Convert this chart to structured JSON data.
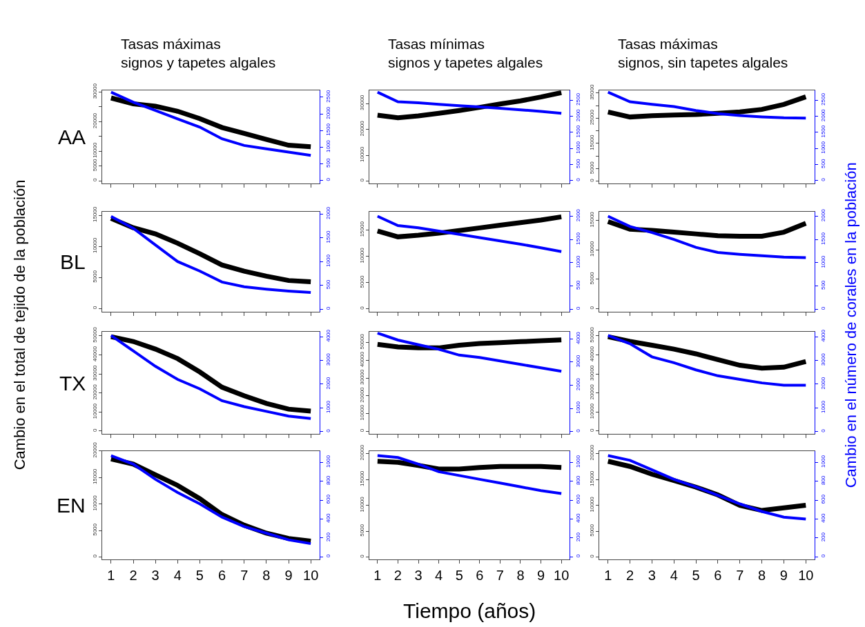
{
  "chart_data": [
    {
      "type": "line",
      "title": "Tasas máximas\nsignos y tapetes algales",
      "ylabel": "Cambio en el total de tejido de la población",
      "annotations": [
        "AA"
      ],
      "x": [
        1,
        2,
        3,
        4,
        5,
        6,
        7,
        8,
        9,
        10
      ],
      "xlim": [
        0.6,
        10.4
      ],
      "xticks": [
        1,
        2,
        3,
        4,
        5,
        6,
        7,
        8,
        9,
        10
      ],
      "tick_labels": "y",
      "ylim": [
        -1000,
        30500
      ],
      "yticks": [
        0,
        5000,
        10000,
        {
          "value": 15000,
          "label": null
        },
        20000,
        {
          "value": 25000,
          "label": null
        },
        30000
      ],
      "y2lim": [
        -100,
        2700
      ],
      "y2ticks": [
        0,
        500,
        1000,
        1500,
        2000,
        2500
      ],
      "series": [
        {
          "color": "#000000",
          "values": [
            28000,
            26000,
            25200,
            23500,
            21000,
            18000,
            16000,
            14000,
            12000,
            11500
          ]
        },
        {
          "color": "#0000ff",
          "axis": "y2",
          "values": [
            2650,
            2350,
            2100,
            1850,
            1600,
            1250,
            1050,
            950,
            850,
            750
          ]
        }
      ]
    },
    {
      "type": "line",
      "title": "Tasas mínimas\nsignos y tapetes algales",
      "x": [
        1,
        2,
        3,
        4,
        5,
        6,
        7,
        8,
        9,
        10
      ],
      "xlim": [
        0.6,
        10.4
      ],
      "xticks": [
        1,
        2,
        3,
        4,
        5,
        6,
        7,
        8,
        9,
        10
      ],
      "tick_labels": "y",
      "ylim": [
        -1000,
        35000
      ],
      "yticks": [
        0,
        10000,
        20000,
        30000
      ],
      "y2lim": [
        -100,
        2800
      ],
      "y2ticks": [
        0,
        500,
        1000,
        1500,
        2000,
        2500
      ],
      "series": [
        {
          "color": "#000000",
          "values": [
            25500,
            24500,
            25200,
            26200,
            27300,
            28500,
            29800,
            31000,
            32500,
            34200
          ]
        },
        {
          "color": "#0000ff",
          "axis": "y2",
          "values": [
            2750,
            2450,
            2420,
            2370,
            2330,
            2290,
            2250,
            2200,
            2150,
            2090
          ]
        }
      ]
    },
    {
      "type": "line",
      "title": "Tasas máximas\nsignos, sin tapetes algales",
      "y2label": "Cambio en el número de corales en la población",
      "x": [
        1,
        2,
        3,
        4,
        5,
        6,
        7,
        8,
        9,
        10
      ],
      "xlim": [
        0.6,
        10.4
      ],
      "xticks": [
        1,
        2,
        3,
        4,
        5,
        6,
        7,
        8,
        9,
        10
      ],
      "tick_labels": "y",
      "ylim": [
        -1000,
        36000
      ],
      "yticks": [
        0,
        5000,
        {
          "value": 10000,
          "label": null
        },
        15000,
        {
          "value": 20000,
          "label": null
        },
        25000,
        {
          "value": 30000,
          "label": null
        },
        35000
      ],
      "y2lim": [
        -100,
        2800
      ],
      "y2ticks": [
        0,
        500,
        1000,
        1500,
        2000,
        2500
      ],
      "series": [
        {
          "color": "#000000",
          "values": [
            27500,
            25500,
            26000,
            26300,
            26500,
            27000,
            27500,
            28500,
            30500,
            33500
          ]
        },
        {
          "color": "#0000ff",
          "axis": "y2",
          "values": [
            2750,
            2450,
            2370,
            2300,
            2180,
            2080,
            2020,
            1980,
            1950,
            1940
          ]
        }
      ]
    },
    {
      "type": "line",
      "annotations": [
        "BL"
      ],
      "x": [
        1,
        2,
        3,
        4,
        5,
        6,
        7,
        8,
        9,
        10
      ],
      "xlim": [
        0.6,
        10.4
      ],
      "xticks": [
        1,
        2,
        3,
        4,
        5,
        6,
        7,
        8,
        9,
        10
      ],
      "tick_labels": "y",
      "ylim": [
        -500,
        15600
      ],
      "yticks": [
        0,
        5000,
        10000,
        15000
      ],
      "y2lim": [
        -50,
        2050
      ],
      "y2ticks": [
        0,
        500,
        1000,
        1500,
        2000
      ],
      "series": [
        {
          "color": "#000000",
          "values": [
            14500,
            13000,
            12000,
            10500,
            8800,
            7000,
            6000,
            5200,
            4500,
            4300
          ]
        },
        {
          "color": "#0000ff",
          "axis": "y2",
          "values": [
            1950,
            1700,
            1350,
            1000,
            800,
            570,
            470,
            420,
            380,
            350
          ]
        }
      ]
    },
    {
      "type": "line",
      "x": [
        1,
        2,
        3,
        4,
        5,
        6,
        7,
        8,
        9,
        10
      ],
      "xlim": [
        0.6,
        10.4
      ],
      "xticks": [
        1,
        2,
        3,
        4,
        5,
        6,
        7,
        8,
        9,
        10
      ],
      "tick_labels": "y",
      "ylim": [
        -500,
        18500
      ],
      "yticks": [
        0,
        5000,
        10000,
        15000
      ],
      "y2lim": [
        -50,
        2100
      ],
      "y2ticks": [
        0,
        500,
        1000,
        1500,
        2000
      ],
      "series": [
        {
          "color": "#000000",
          "values": [
            14800,
            13700,
            14000,
            14400,
            14900,
            15400,
            15900,
            16400,
            16900,
            17500
          ]
        },
        {
          "color": "#0000ff",
          "axis": "y2",
          "values": [
            2000,
            1800,
            1750,
            1680,
            1610,
            1540,
            1470,
            1400,
            1320,
            1240
          ]
        }
      ]
    },
    {
      "type": "line",
      "x": [
        1,
        2,
        3,
        4,
        5,
        6,
        7,
        8,
        9,
        10
      ],
      "xlim": [
        0.6,
        10.4
      ],
      "xticks": [
        1,
        2,
        3,
        4,
        5,
        6,
        7,
        8,
        9,
        10
      ],
      "tick_labels": "y",
      "ylim": [
        -500,
        16500
      ],
      "yticks": [
        0,
        5000,
        10000,
        15000
      ],
      "y2lim": [
        -50,
        2100
      ],
      "y2ticks": [
        0,
        500,
        1000,
        1500,
        2000
      ],
      "series": [
        {
          "color": "#000000",
          "values": [
            14800,
            13500,
            13300,
            13000,
            12700,
            12400,
            12300,
            12300,
            13000,
            14500
          ]
        },
        {
          "color": "#0000ff",
          "axis": "y2",
          "values": [
            2000,
            1780,
            1650,
            1500,
            1330,
            1220,
            1180,
            1150,
            1120,
            1110
          ]
        }
      ]
    },
    {
      "type": "line",
      "annotations": [
        "TX"
      ],
      "x": [
        1,
        2,
        3,
        4,
        5,
        6,
        7,
        8,
        9,
        10
      ],
      "xlim": [
        0.6,
        10.4
      ],
      "xticks": [
        1,
        2,
        3,
        4,
        5,
        6,
        7,
        8,
        9,
        10
      ],
      "tick_labels": "y",
      "ylim": [
        -1500,
        52000
      ],
      "yticks": [
        0,
        10000,
        20000,
        30000,
        40000,
        50000
      ],
      "y2lim": [
        -100,
        4200
      ],
      "y2ticks": [
        0,
        1000,
        2000,
        3000,
        4000
      ],
      "series": [
        {
          "color": "#000000",
          "values": [
            49500,
            47000,
            43000,
            38000,
            31000,
            23000,
            18500,
            14500,
            11500,
            10500
          ]
        },
        {
          "color": "#0000ff",
          "axis": "y2",
          "values": [
            4050,
            3400,
            2750,
            2200,
            1800,
            1300,
            1050,
            850,
            650,
            550
          ]
        }
      ]
    },
    {
      "type": "line",
      "x": [
        1,
        2,
        3,
        4,
        5,
        6,
        7,
        8,
        9,
        10
      ],
      "xlim": [
        0.6,
        10.4
      ],
      "xticks": [
        1,
        2,
        3,
        4,
        5,
        6,
        7,
        8,
        9,
        10
      ],
      "tick_labels": "y",
      "ylim": [
        -1500,
        56000
      ],
      "yticks": [
        0,
        10000,
        20000,
        30000,
        40000,
        50000
      ],
      "y2lim": [
        -100,
        4300
      ],
      "y2ticks": [
        0,
        1000,
        2000,
        3000,
        4000
      ],
      "series": [
        {
          "color": "#000000",
          "values": [
            49000,
            47500,
            47000,
            47000,
            48500,
            49500,
            50000,
            50500,
            51000,
            51500
          ]
        },
        {
          "color": "#0000ff",
          "axis": "y2",
          "values": [
            4250,
            3950,
            3750,
            3550,
            3300,
            3200,
            3050,
            2900,
            2750,
            2600
          ]
        }
      ]
    },
    {
      "type": "line",
      "x": [
        1,
        2,
        3,
        4,
        5,
        6,
        7,
        8,
        9,
        10
      ],
      "xlim": [
        0.6,
        10.4
      ],
      "xticks": [
        1,
        2,
        3,
        4,
        5,
        6,
        7,
        8,
        9,
        10
      ],
      "tick_labels": "y",
      "ylim": [
        -1500,
        52000
      ],
      "yticks": [
        0,
        10000,
        20000,
        30000,
        40000,
        50000
      ],
      "y2lim": [
        -100,
        4200
      ],
      "y2ticks": [
        0,
        1000,
        2000,
        3000,
        4000
      ],
      "series": [
        {
          "color": "#000000",
          "values": [
            49500,
            47000,
            45000,
            43000,
            40500,
            37500,
            34500,
            33000,
            33500,
            36500
          ]
        },
        {
          "color": "#0000ff",
          "axis": "y2",
          "values": [
            4050,
            3700,
            3150,
            2900,
            2600,
            2350,
            2200,
            2050,
            1950,
            1950
          ]
        }
      ]
    },
    {
      "type": "line",
      "annotations": [
        "EN"
      ],
      "x": [
        1,
        2,
        3,
        4,
        5,
        6,
        7,
        8,
        9,
        10
      ],
      "xlim": [
        0.6,
        10.4
      ],
      "xticks": [
        1,
        2,
        3,
        4,
        5,
        6,
        7,
        8,
        9,
        10
      ],
      "ylim": [
        -500,
        20000
      ],
      "yticks": [
        0,
        5000,
        10000,
        15000,
        20000
      ],
      "y2lim": [
        -30,
        1120
      ],
      "y2ticks": [
        0,
        200,
        400,
        600,
        800,
        1000
      ],
      "series": [
        {
          "color": "#000000",
          "values": [
            18500,
            17500,
            15500,
            13500,
            11000,
            8000,
            6000,
            4500,
            3500,
            3000
          ]
        },
        {
          "color": "#0000ff",
          "axis": "y2",
          "values": [
            1070,
            980,
            820,
            680,
            560,
            420,
            320,
            250,
            180,
            140
          ]
        }
      ]
    },
    {
      "type": "line",
      "xlabel": "Tiempo (años)",
      "x": [
        1,
        2,
        3,
        4,
        5,
        6,
        7,
        8,
        9,
        10
      ],
      "xlim": [
        0.6,
        10.4
      ],
      "xticks": [
        1,
        2,
        3,
        4,
        5,
        6,
        7,
        8,
        9,
        10
      ],
      "ylim": [
        -500,
        20500
      ],
      "yticks": [
        0,
        5000,
        10000,
        15000,
        20000
      ],
      "y2lim": [
        -30,
        1120
      ],
      "y2ticks": [
        0,
        200,
        400,
        600,
        800,
        1000
      ],
      "series": [
        {
          "color": "#000000",
          "values": [
            18500,
            18300,
            17700,
            17000,
            17000,
            17300,
            17500,
            17500,
            17500,
            17300
          ]
        },
        {
          "color": "#0000ff",
          "axis": "y2",
          "values": [
            1070,
            1050,
            980,
            900,
            860,
            820,
            780,
            740,
            700,
            670
          ]
        }
      ]
    },
    {
      "type": "line",
      "x": [
        1,
        2,
        3,
        4,
        5,
        6,
        7,
        8,
        9,
        10
      ],
      "xlim": [
        0.6,
        10.4
      ],
      "xticks": [
        1,
        2,
        3,
        4,
        5,
        6,
        7,
        8,
        9,
        10
      ],
      "ylim": [
        -500,
        20500
      ],
      "yticks": [
        0,
        5000,
        10000,
        15000,
        20000
      ],
      "y2lim": [
        -30,
        1120
      ],
      "y2ticks": [
        0,
        200,
        400,
        600,
        800,
        1000
      ],
      "series": [
        {
          "color": "#000000",
          "values": [
            18500,
            17500,
            16000,
            14800,
            13500,
            12000,
            10000,
            9000,
            9500,
            10000
          ]
        },
        {
          "color": "#0000ff",
          "axis": "y2",
          "values": [
            1070,
            1020,
            920,
            820,
            740,
            650,
            560,
            480,
            420,
            400
          ]
        }
      ]
    }
  ]
}
